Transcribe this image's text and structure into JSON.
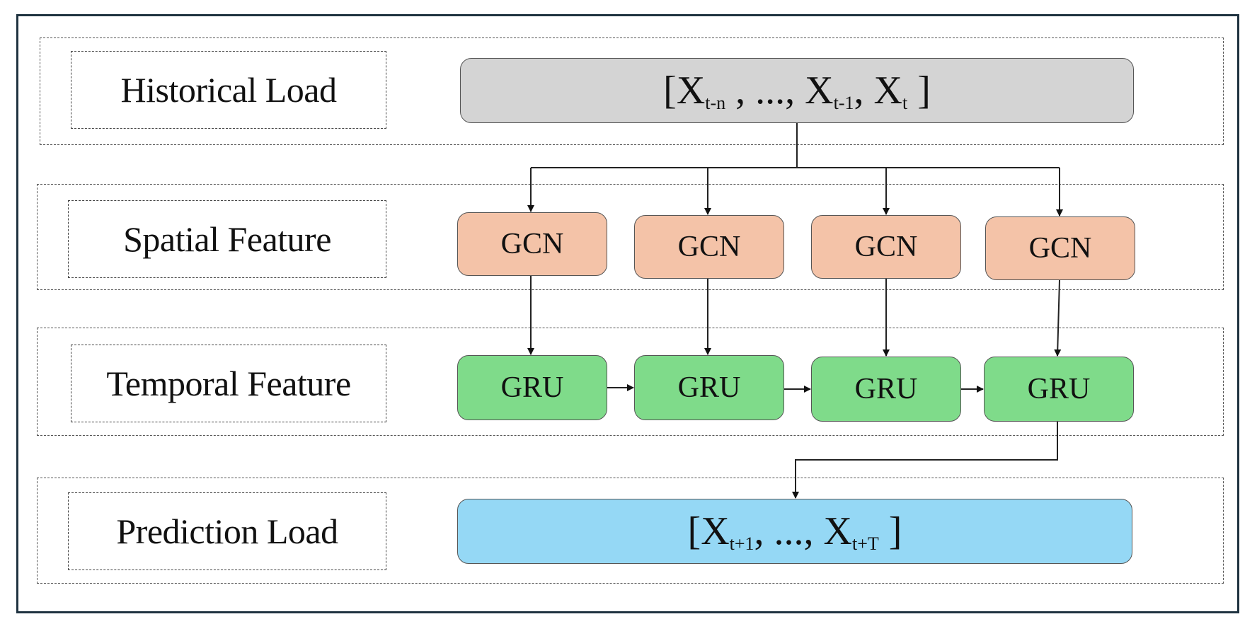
{
  "layers": {
    "historical": {
      "label": "Historical Load"
    },
    "spatial": {
      "label": "Spatial Feature"
    },
    "temporal": {
      "label": "Temporal Feature"
    },
    "prediction": {
      "label": "Prediction Load"
    }
  },
  "input_sequence": {
    "open": "[",
    "x1": "X",
    "s1": "t-n",
    "sep1": " ,",
    "ellipsis": " ..., ",
    "x2": "X",
    "s2": "t-1",
    "sep2": ",",
    "x3": " X",
    "s3": "t",
    "close": " ]"
  },
  "gcn_nodes": [
    "GCN",
    "GCN",
    "GCN",
    "GCN"
  ],
  "gru_nodes": [
    "GRU",
    "GRU",
    "GRU",
    "GRU"
  ],
  "output_sequence": {
    "open": "[",
    "x1": "X",
    "s1": "t+1",
    "sep1": ",",
    "ellipsis": " ..., ",
    "x2": "X",
    "s2": "t+T",
    "close": " ]"
  },
  "colors": {
    "input_fill": "#d4d4d4",
    "gcn_fill": "#f4c3a8",
    "gru_fill": "#7fdb8a",
    "output_fill": "#95d8f5",
    "frame_border": "#1f3340"
  }
}
